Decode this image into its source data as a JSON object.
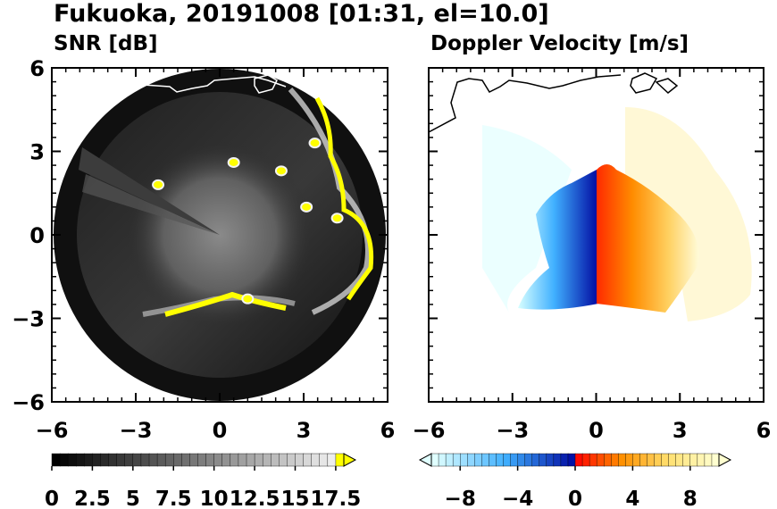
{
  "figure": {
    "title": "Fukuoka, 20191008 [01:31, el=10.0]"
  },
  "chart_data": [
    {
      "type": "heatmap",
      "title": "SNR [dB]",
      "xlabel": "",
      "ylabel": "",
      "xlim": [
        -6,
        6
      ],
      "ylim": [
        -6,
        6
      ],
      "x_ticks": [
        "−6",
        "−3",
        "0",
        "3",
        "6"
      ],
      "y_ticks": [
        "6",
        "3",
        "0",
        "−3",
        "−6"
      ],
      "colorbar": {
        "range": [
          0,
          18
        ],
        "tick_labels": [
          "0",
          "2.5",
          "5",
          "7.5",
          "10",
          "12.5",
          "15",
          "17.5"
        ],
        "colors": [
          "#000000",
          "#f0f0f0",
          "#ffff00"
        ],
        "extend": "max"
      },
      "features": [
        {
          "x": -2.2,
          "y": 1.8,
          "value": 18
        },
        {
          "x": 0.5,
          "y": 2.6,
          "value": 18
        },
        {
          "x": 2.2,
          "y": 2.3,
          "value": 18
        },
        {
          "x": 3.1,
          "y": 1.0,
          "value": 18
        },
        {
          "x": 3.4,
          "y": 3.3,
          "value": 18
        },
        {
          "x": 4.2,
          "y": 0.6,
          "value": 18
        },
        {
          "x": 1.0,
          "y": -2.3,
          "value": 18
        }
      ]
    },
    {
      "type": "heatmap",
      "title": "Doppler Velocity [m/s]",
      "xlabel": "",
      "ylabel": "",
      "xlim": [
        -6,
        6
      ],
      "ylim": [
        -6,
        6
      ],
      "x_ticks": [
        "−6",
        "−3",
        "0",
        "3",
        "6"
      ],
      "y_ticks": [],
      "colorbar": {
        "range": [
          -10,
          10
        ],
        "tick_labels": [
          "−8",
          "−4",
          "0",
          "4",
          "8"
        ],
        "colors": [
          "#e0ffff",
          "#0000aa",
          "#ff0000",
          "#ffff80"
        ],
        "extend": "both"
      }
    }
  ]
}
